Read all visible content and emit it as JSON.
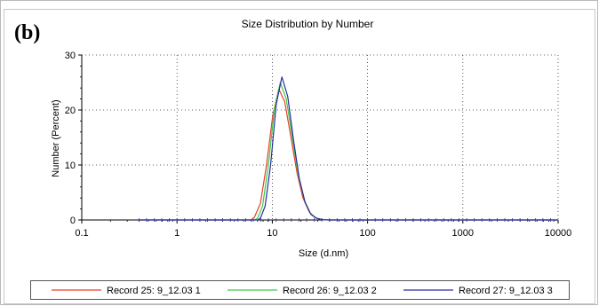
{
  "panel_label": "(b)",
  "chart_data": {
    "type": "line",
    "title": "Size Distribution by Number",
    "xlabel": "Size (d.nm)",
    "ylabel": "Number (Percent)",
    "x_scale": "log",
    "xlim": [
      0.1,
      10000
    ],
    "ylim": [
      0,
      30
    ],
    "x_ticks": [
      0.1,
      1,
      10,
      100,
      1000,
      10000
    ],
    "x_tick_labels": [
      "0.1",
      "1",
      "10",
      "100",
      "1000",
      "10000"
    ],
    "y_ticks": [
      0,
      10,
      20,
      30
    ],
    "y_tick_labels": [
      "0",
      "10",
      "20",
      "30"
    ],
    "grid": "dotted",
    "legend_position": "bottom",
    "series": [
      {
        "name": "Record 25: 9_12.03 1",
        "color": "#e8412a",
        "x": [
          0.4,
          6.0,
          6.5,
          7.5,
          8.7,
          10.1,
          11.7,
          13.5,
          15.7,
          18.2,
          21.0,
          24.4,
          28.2,
          32.7,
          37.8,
          45,
          100,
          1000,
          10000
        ],
        "y": [
          0,
          0,
          0.5,
          3.0,
          10.0,
          19.0,
          23.8,
          21.5,
          15.0,
          8.5,
          4.0,
          1.5,
          0.4,
          0.1,
          0,
          0,
          0,
          0,
          0
        ]
      },
      {
        "name": "Record 26: 9_12.03 2",
        "color": "#3ecb4b",
        "x": [
          0.4,
          6.5,
          7.0,
          7.9,
          9.1,
          10.5,
          12.1,
          14.0,
          16.2,
          18.8,
          21.8,
          25.2,
          29.2,
          33.8,
          40,
          100,
          1000,
          10000
        ],
        "y": [
          0,
          0,
          0.3,
          2.5,
          10.0,
          20.0,
          25.0,
          22.0,
          15.0,
          8.0,
          3.5,
          1.2,
          0.3,
          0.05,
          0,
          0,
          0,
          0
        ]
      },
      {
        "name": "Record 27: 9_12.03 3",
        "color": "#2b2fa3",
        "x": [
          0.4,
          7.0,
          7.5,
          8.4,
          9.6,
          11.0,
          12.6,
          14.5,
          16.7,
          19.2,
          22.1,
          25.4,
          29.2,
          33.5,
          40,
          100,
          1000,
          10000
        ],
        "y": [
          0,
          0,
          0.3,
          2.5,
          10.0,
          21.0,
          26.0,
          22.5,
          14.5,
          7.5,
          3.2,
          1.0,
          0.3,
          0.05,
          0,
          0,
          0,
          0
        ]
      }
    ]
  }
}
